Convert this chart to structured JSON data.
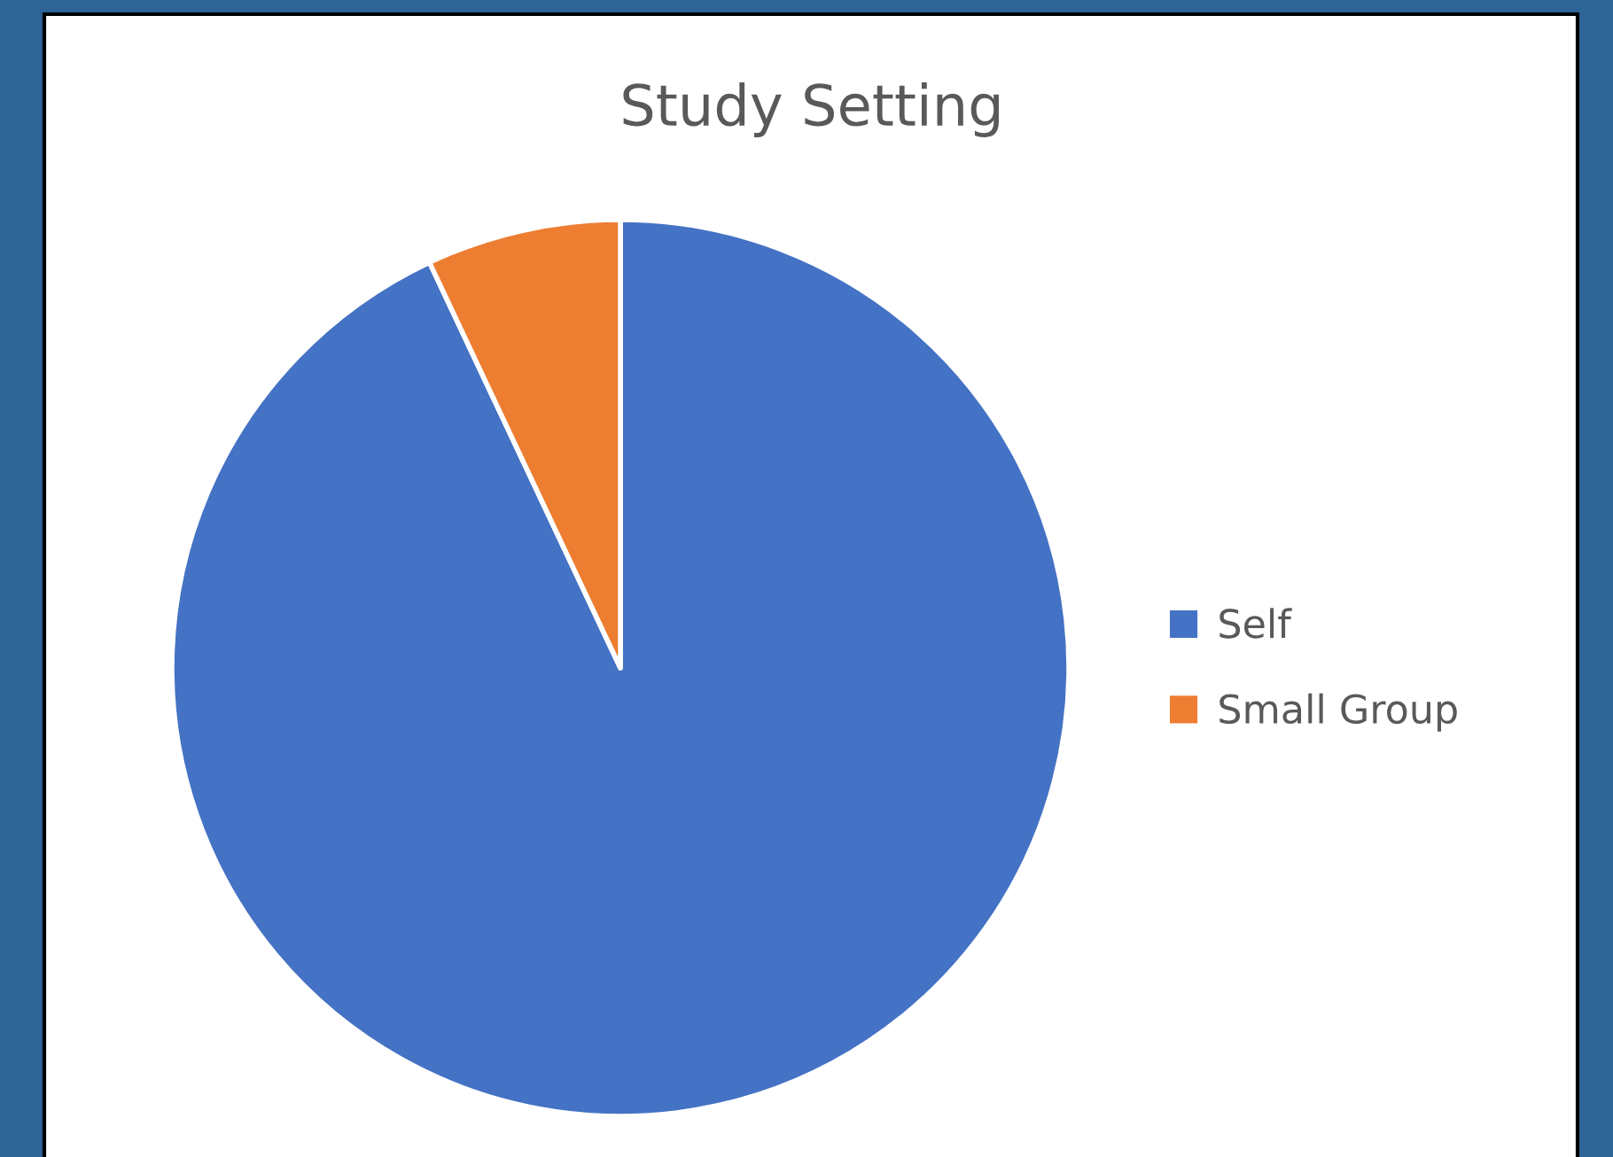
{
  "chart_data": {
    "type": "pie",
    "title": "Study Setting",
    "categories": [
      "Self",
      "Small Group"
    ],
    "values": [
      93,
      7
    ],
    "colors": [
      "#4472c4",
      "#ed7d31"
    ],
    "legend": "right"
  }
}
